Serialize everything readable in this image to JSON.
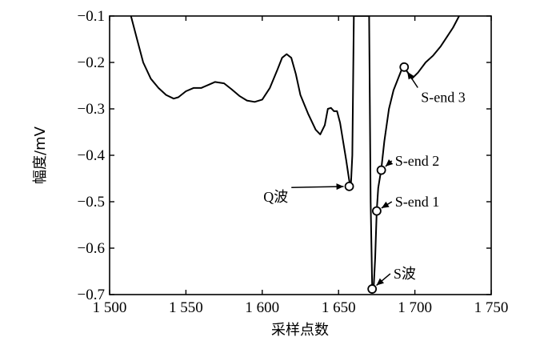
{
  "chart_data": {
    "type": "line",
    "xlabel": "采样点数",
    "ylabel": "幅度/mV",
    "xlim": [
      1500,
      1750
    ],
    "ylim": [
      -0.7,
      -0.1
    ],
    "grid": false,
    "x_ticks": [
      1500,
      1550,
      1600,
      1650,
      1700,
      1750
    ],
    "x_tick_labels": [
      "1 500",
      "1 550",
      "1 600",
      "1 650",
      "1 700",
      "1 750"
    ],
    "y_ticks": [
      -0.1,
      -0.2,
      -0.3,
      -0.4,
      -0.5,
      -0.6,
      -0.7
    ],
    "y_tick_labels": [
      "−0.1",
      "−0.2",
      "−0.3",
      "−0.4",
      "−0.5",
      "−0.6",
      "−0.7"
    ],
    "series": [
      {
        "x": [
          1514,
          1518,
          1522,
          1527,
          1532,
          1537,
          1542,
          1545,
          1550,
          1555,
          1560,
          1565,
          1569,
          1575,
          1580,
          1585,
          1590,
          1595,
          1600,
          1605,
          1610,
          1613,
          1616,
          1619,
          1622,
          1625,
          1630,
          1635,
          1638,
          1641,
          1643,
          1645,
          1647,
          1649,
          1651,
          1653,
          1655,
          1657,
          1658,
          1659,
          1660
        ],
        "y": [
          -0.1,
          -0.15,
          -0.2,
          -0.235,
          -0.255,
          -0.27,
          -0.278,
          -0.275,
          -0.262,
          -0.255,
          -0.255,
          -0.248,
          -0.242,
          -0.245,
          -0.258,
          -0.272,
          -0.282,
          -0.285,
          -0.28,
          -0.255,
          -0.215,
          -0.19,
          -0.182,
          -0.19,
          -0.225,
          -0.27,
          -0.31,
          -0.345,
          -0.355,
          -0.335,
          -0.3,
          -0.298,
          -0.305,
          -0.305,
          -0.33,
          -0.37,
          -0.41,
          -0.455,
          -0.468,
          -0.4,
          -0.1
        ]
      },
      {
        "x": [
          1660,
          1662,
          1664,
          1666,
          1668,
          1670
        ],
        "y": [
          -0.1,
          -0.1,
          -0.1,
          -0.1,
          -0.1,
          -0.1
        ]
      },
      {
        "x": [
          1670,
          1671,
          1672,
          1673,
          1674,
          1675,
          1676,
          1678,
          1680,
          1683,
          1686,
          1689,
          1692,
          1695,
          1698,
          1702,
          1707,
          1712,
          1717,
          1721,
          1725,
          1729
        ],
        "y": [
          -0.1,
          -0.5,
          -0.68,
          -0.685,
          -0.62,
          -0.52,
          -0.47,
          -0.43,
          -0.37,
          -0.3,
          -0.26,
          -0.235,
          -0.21,
          -0.22,
          -0.235,
          -0.222,
          -0.2,
          -0.185,
          -0.165,
          -0.145,
          -0.125,
          -0.1
        ]
      }
    ],
    "markers": [
      {
        "x": 1657,
        "y": -0.467
      },
      {
        "x": 1672,
        "y": -0.688
      },
      {
        "x": 1675,
        "y": -0.52
      },
      {
        "x": 1678,
        "y": -0.432
      },
      {
        "x": 1693,
        "y": -0.21
      }
    ],
    "annotations": [
      {
        "label": "Q波",
        "x": 1657,
        "y": -0.467,
        "label_x": 1617,
        "label_y": -0.49
      },
      {
        "label": "S波",
        "x": 1672,
        "y": -0.688,
        "label_x": 1686,
        "label_y": -0.655
      },
      {
        "label": "S-end 1",
        "x": 1675,
        "y": -0.52,
        "label_x": 1687,
        "label_y": -0.5
      },
      {
        "label": "S-end 2",
        "x": 1678,
        "y": -0.432,
        "label_x": 1687,
        "label_y": -0.412
      },
      {
        "label": "S-end 3",
        "x": 1693,
        "y": -0.21,
        "label_x": 1704,
        "label_y": -0.275
      }
    ]
  }
}
